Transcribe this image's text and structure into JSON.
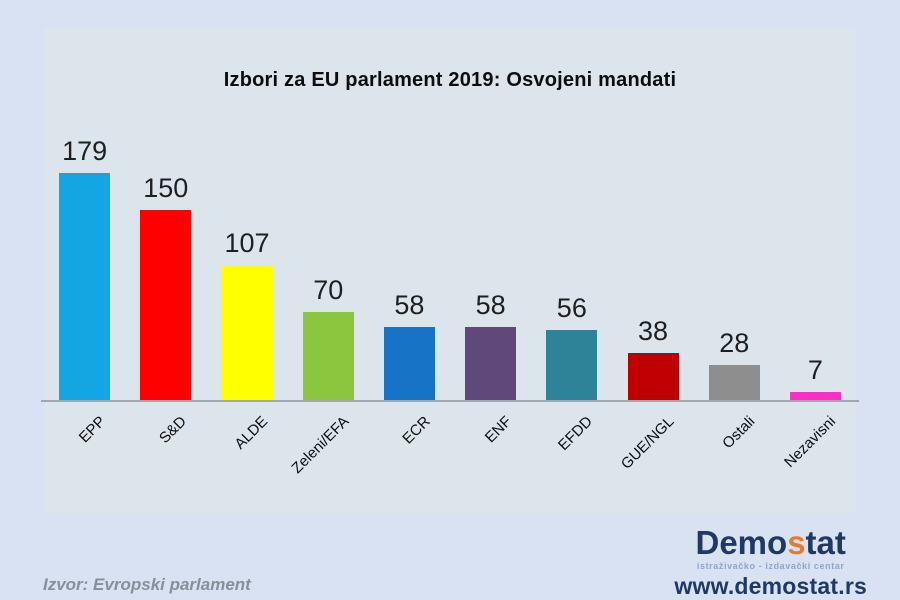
{
  "page": {
    "background": "#d8e2f2",
    "panel_background": "#dde5ec",
    "axis_color": "#a0a6aa"
  },
  "chart_data": {
    "type": "bar",
    "title": "Izbori za EU parlament 2019: Osvojeni mandati",
    "categories": [
      "EPP",
      "S&D",
      "ALDE",
      "Zeleni/EFA",
      "ECR",
      "ENF",
      "EFDD",
      "GUE/NGL",
      "Ostali",
      "Nezavisni"
    ],
    "values": [
      179,
      150,
      107,
      70,
      58,
      58,
      56,
      38,
      28,
      7
    ],
    "colors": [
      "#14a5e3",
      "#fe0000",
      "#ffff00",
      "#8cc63e",
      "#1673c5",
      "#60487a",
      "#2f8399",
      "#c00000",
      "#8e8e8e",
      "#fe2dc6"
    ],
    "xlabel": "",
    "ylabel": "",
    "ylim": [
      0,
      190
    ],
    "grid": false,
    "legend_position": "none",
    "data_labels": true,
    "x_tick_rotation_deg": 45
  },
  "source": {
    "label": "Izvor: Evropski parlament"
  },
  "branding": {
    "logo_prefix": "Demo",
    "logo_accent": "s",
    "logo_suffix": "tat",
    "tagline": "istraživačko - izdavački centar",
    "website": "www.demostat.rs",
    "navy": "#1f3864",
    "orange": "#e87a2c"
  }
}
